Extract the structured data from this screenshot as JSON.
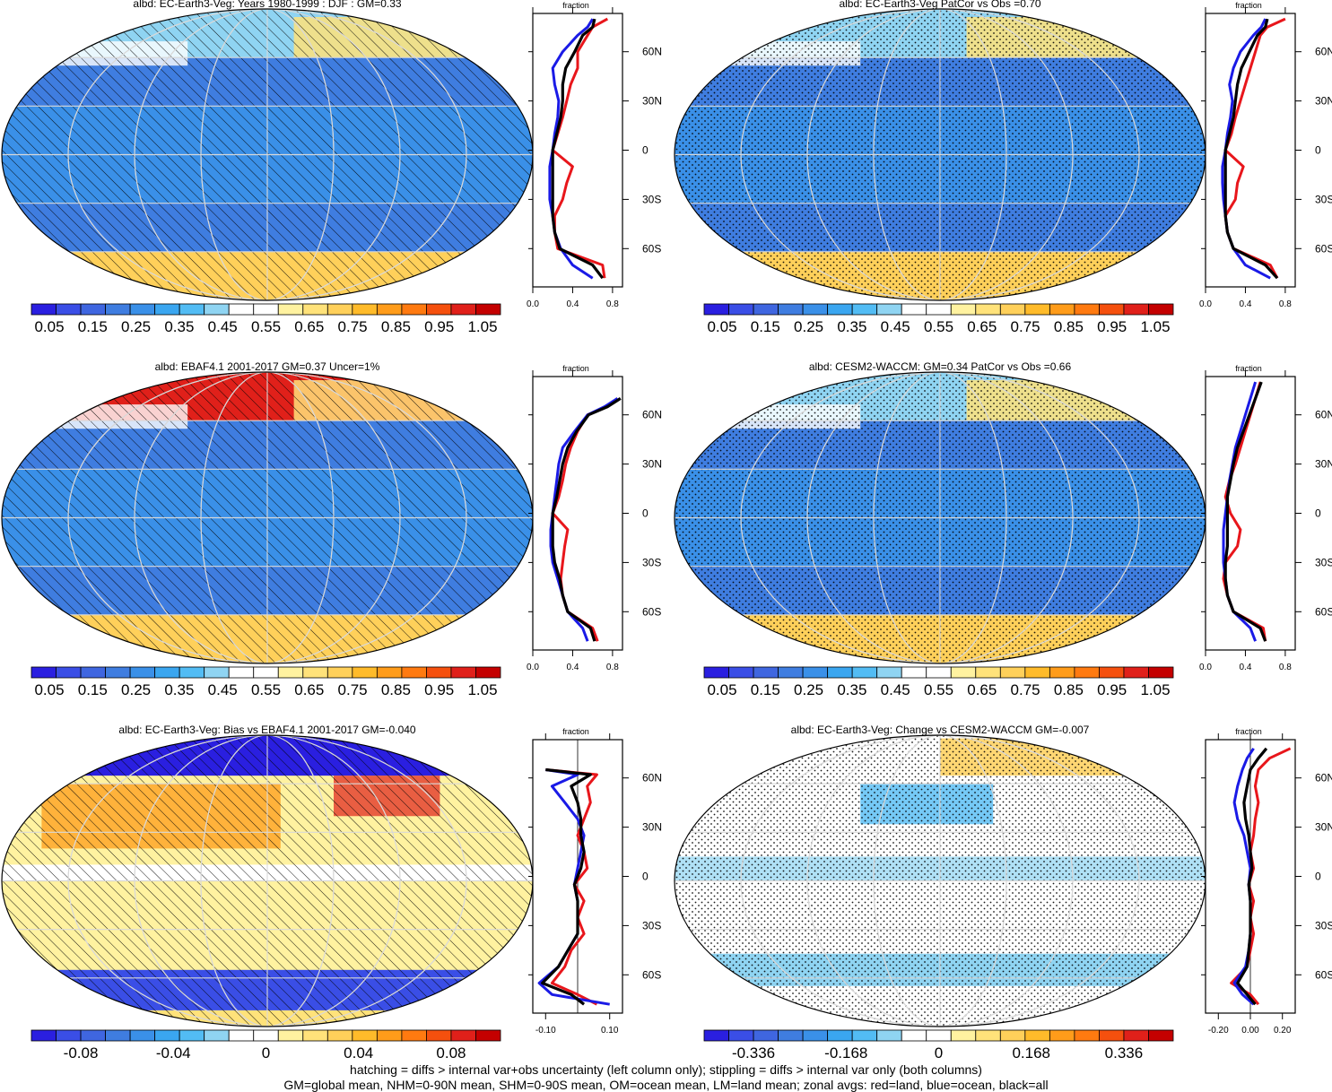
{
  "panels": [
    {
      "id": "p1",
      "title": "albd: EC-Earth3-Veg: Years 1980-1999 : DJF : GM=0.33",
      "scale": "abs",
      "pattern": "hatch",
      "profile": {
        "xlabel": "fraction",
        "ticks": [
          "0.0",
          "0.4",
          "0.8"
        ],
        "xmin": 0,
        "xmax": 0.9,
        "zero": null,
        "lat": [
          -78,
          -70,
          -60,
          -50,
          -40,
          -30,
          -20,
          -10,
          0,
          10,
          20,
          30,
          40,
          50,
          60,
          70,
          75,
          80
        ],
        "land": [
          0.72,
          0.7,
          0.25,
          0.22,
          0.22,
          0.3,
          0.34,
          0.4,
          0.2,
          0.25,
          0.3,
          0.34,
          0.38,
          0.45,
          0.45,
          0.55,
          0.6,
          0.75
        ],
        "ocean": [
          0.6,
          0.4,
          0.28,
          0.22,
          0.2,
          0.17,
          0.17,
          0.17,
          0.2,
          0.22,
          0.25,
          0.26,
          0.22,
          0.2,
          0.3,
          0.45,
          0.55,
          0.6
        ],
        "all": [
          0.7,
          0.6,
          0.27,
          0.22,
          0.2,
          0.2,
          0.2,
          0.2,
          0.2,
          0.24,
          0.28,
          0.3,
          0.3,
          0.33,
          0.42,
          0.5,
          0.6,
          0.62
        ]
      }
    },
    {
      "id": "p2",
      "title": "albd: EC-Earth3-Veg PatCor vs Obs =0.70",
      "scale": "abs",
      "pattern": "stipple",
      "profile": {
        "xlabel": "fraction",
        "ticks": [
          "0.0",
          "0.4",
          "0.8"
        ],
        "xmin": 0,
        "xmax": 0.9,
        "zero": null,
        "lat": [
          -78,
          -70,
          -60,
          -50,
          -40,
          -30,
          -20,
          -10,
          0,
          10,
          20,
          30,
          40,
          50,
          60,
          70,
          75,
          80
        ],
        "land": [
          0.72,
          0.65,
          0.28,
          0.22,
          0.2,
          0.3,
          0.32,
          0.38,
          0.2,
          0.26,
          0.3,
          0.35,
          0.4,
          0.45,
          0.5,
          0.55,
          0.62,
          0.8
        ],
        "ocean": [
          0.65,
          0.4,
          0.28,
          0.22,
          0.2,
          0.18,
          0.17,
          0.17,
          0.2,
          0.22,
          0.25,
          0.27,
          0.24,
          0.28,
          0.35,
          0.48,
          0.56,
          0.6
        ],
        "all": [
          0.72,
          0.6,
          0.28,
          0.22,
          0.2,
          0.2,
          0.2,
          0.2,
          0.2,
          0.24,
          0.28,
          0.3,
          0.32,
          0.36,
          0.44,
          0.52,
          0.6,
          0.62
        ]
      }
    },
    {
      "id": "p3",
      "title": "albd: EBAF4.1 2001-2017 GM=0.37 Uncer=1%",
      "scale": "abs",
      "pattern": "hatch",
      "profile": {
        "xlabel": "fraction",
        "ticks": [
          "0.0",
          "0.4",
          "0.8"
        ],
        "xmin": 0,
        "xmax": 0.9,
        "zero": null,
        "lat": [
          -78,
          -70,
          -60,
          -50,
          -40,
          -30,
          -20,
          -10,
          0,
          10,
          20,
          30,
          40,
          50,
          60,
          65,
          70
        ],
        "land": [
          0.65,
          0.6,
          0.35,
          0.3,
          0.28,
          0.3,
          0.32,
          0.35,
          0.2,
          0.26,
          0.3,
          0.33,
          0.38,
          0.45,
          0.55,
          0.75,
          0.85
        ],
        "ocean": [
          0.55,
          0.5,
          0.35,
          0.3,
          0.25,
          0.2,
          0.18,
          0.18,
          0.2,
          0.22,
          0.24,
          0.26,
          0.3,
          0.42,
          0.55,
          0.72,
          0.85
        ],
        "all": [
          0.62,
          0.58,
          0.35,
          0.3,
          0.27,
          0.22,
          0.2,
          0.2,
          0.2,
          0.24,
          0.27,
          0.3,
          0.35,
          0.44,
          0.56,
          0.75,
          0.88
        ]
      }
    },
    {
      "id": "p4",
      "title": "albd: CESM2-WACCM: GM=0.34 PatCor vs Obs =0.66",
      "scale": "abs",
      "pattern": "stipple",
      "profile": {
        "xlabel": "fraction",
        "ticks": [
          "0.0",
          "0.4",
          "0.8"
        ],
        "xmin": 0,
        "xmax": 0.9,
        "zero": null,
        "lat": [
          -78,
          -70,
          -60,
          -50,
          -40,
          -30,
          -20,
          -10,
          0,
          10,
          20,
          30,
          40,
          50,
          60,
          70,
          80
        ],
        "land": [
          0.6,
          0.58,
          0.28,
          0.22,
          0.18,
          0.2,
          0.32,
          0.35,
          0.25,
          0.2,
          0.24,
          0.3,
          0.35,
          0.4,
          0.45,
          0.5,
          0.55
        ],
        "ocean": [
          0.5,
          0.45,
          0.28,
          0.22,
          0.2,
          0.18,
          0.18,
          0.18,
          0.2,
          0.22,
          0.24,
          0.27,
          0.3,
          0.35,
          0.4,
          0.45,
          0.5
        ],
        "all": [
          0.6,
          0.55,
          0.28,
          0.22,
          0.2,
          0.2,
          0.22,
          0.22,
          0.22,
          0.22,
          0.25,
          0.28,
          0.32,
          0.38,
          0.44,
          0.5,
          0.56
        ]
      }
    },
    {
      "id": "p5",
      "title": "albd: EC-Earth3-Veg: Bias vs EBAF4.1 2001-2017 GM=-0.040",
      "scale": "bias",
      "pattern": "hatch",
      "profile": {
        "xlabel": "fraction",
        "ticks": [
          "-0.10",
          "0.10"
        ],
        "tickvals": [
          -0.1,
          0.1
        ],
        "xmin": -0.14,
        "xmax": 0.14,
        "zero": 0,
        "lat": [
          -78,
          -72,
          -65,
          -55,
          -45,
          -35,
          -25,
          -15,
          -5,
          5,
          15,
          25,
          35,
          45,
          55,
          62,
          65
        ],
        "land": [
          0.06,
          0.0,
          -0.08,
          -0.04,
          -0.02,
          0.02,
          0.0,
          0.02,
          -0.01,
          0.03,
          0.02,
          0.0,
          0.02,
          0.04,
          0.03,
          0.06,
          -0.1
        ],
        "ocean": [
          0.1,
          -0.08,
          -0.12,
          -0.06,
          -0.03,
          0.0,
          0.0,
          0.0,
          -0.01,
          0.0,
          0.01,
          0.02,
          0.0,
          -0.04,
          -0.08,
          0.0,
          -0.1
        ],
        "all": [
          0.02,
          -0.02,
          -0.11,
          -0.06,
          -0.03,
          0.0,
          0.0,
          0.0,
          -0.01,
          0.01,
          0.02,
          0.01,
          0.01,
          0.0,
          -0.02,
          0.04,
          -0.1
        ]
      }
    },
    {
      "id": "p6",
      "title": "albd: EC-Earth3-Veg: Change vs CESM2-WACCM GM=-0.007",
      "scale": "change",
      "pattern": "stipple",
      "profile": {
        "xlabel": "fraction",
        "ticks": [
          "-0.20",
          "0.00",
          "0.20"
        ],
        "tickvals": [
          -0.2,
          0,
          0.2
        ],
        "xmin": -0.28,
        "xmax": 0.28,
        "zero": 0,
        "lat": [
          -78,
          -72,
          -65,
          -55,
          -45,
          -35,
          -25,
          -15,
          -5,
          5,
          15,
          25,
          35,
          45,
          55,
          65,
          72,
          78
        ],
        "land": [
          0.05,
          0.0,
          -0.12,
          -0.02,
          0.0,
          0.02,
          0.0,
          0.02,
          -0.01,
          0.02,
          0.0,
          0.02,
          0.03,
          0.05,
          0.03,
          0.05,
          0.12,
          0.25
        ],
        "ocean": [
          0.02,
          -0.05,
          -0.1,
          -0.03,
          -0.01,
          0.0,
          0.0,
          0.0,
          -0.01,
          0.0,
          -0.02,
          -0.04,
          -0.08,
          -0.1,
          -0.08,
          -0.05,
          -0.02,
          0.02
        ],
        "all": [
          0.03,
          -0.02,
          -0.08,
          -0.02,
          -0.01,
          0.0,
          0.0,
          0.0,
          -0.01,
          0.01,
          0.0,
          -0.01,
          -0.03,
          -0.04,
          -0.02,
          0.0,
          0.05,
          0.1
        ]
      }
    }
  ],
  "colorbars": {
    "abs": {
      "labels": [
        "0.05",
        "0.15",
        "0.25",
        "0.35",
        "0.45",
        "0.55",
        "0.65",
        "0.75",
        "0.85",
        "0.95",
        "1.05"
      ]
    },
    "bias": {
      "labels": [
        "-0.08",
        "-0.04",
        "0",
        "0.04",
        "0.08"
      ]
    },
    "change": {
      "labels": [
        "-0.336",
        "-0.168",
        "0",
        "0.168",
        "0.336"
      ]
    },
    "colors": [
      "#2a1fe0",
      "#3a4ee6",
      "#3f66e0",
      "#3f7de0",
      "#3a90e8",
      "#3aa6f0",
      "#52bcf4",
      "#8fd4f2",
      "#ffffff",
      "#ffffff",
      "#fff2a0",
      "#ffe27a",
      "#ffd05a",
      "#ffbb2a",
      "#ff9c1a",
      "#ff7a10",
      "#f5500e",
      "#e0201a",
      "#c40000"
    ]
  },
  "lat_labels": [
    "60N",
    "30N",
    "0",
    "30S",
    "60S"
  ],
  "footer": {
    "line1": "hatching = diffs > internal var+obs uncertainty (left column only); stippling = diffs > internal var only (both columns)",
    "line2": "GM=global mean, NHM=0-90N mean, SHM=0-90S mean, OM=ocean mean, LM=land mean; zonal avgs: red=land, blue=ocean, black=all"
  },
  "series_colors": {
    "land": "#e8161b",
    "ocean": "#1a1ae6",
    "all": "#000000"
  }
}
